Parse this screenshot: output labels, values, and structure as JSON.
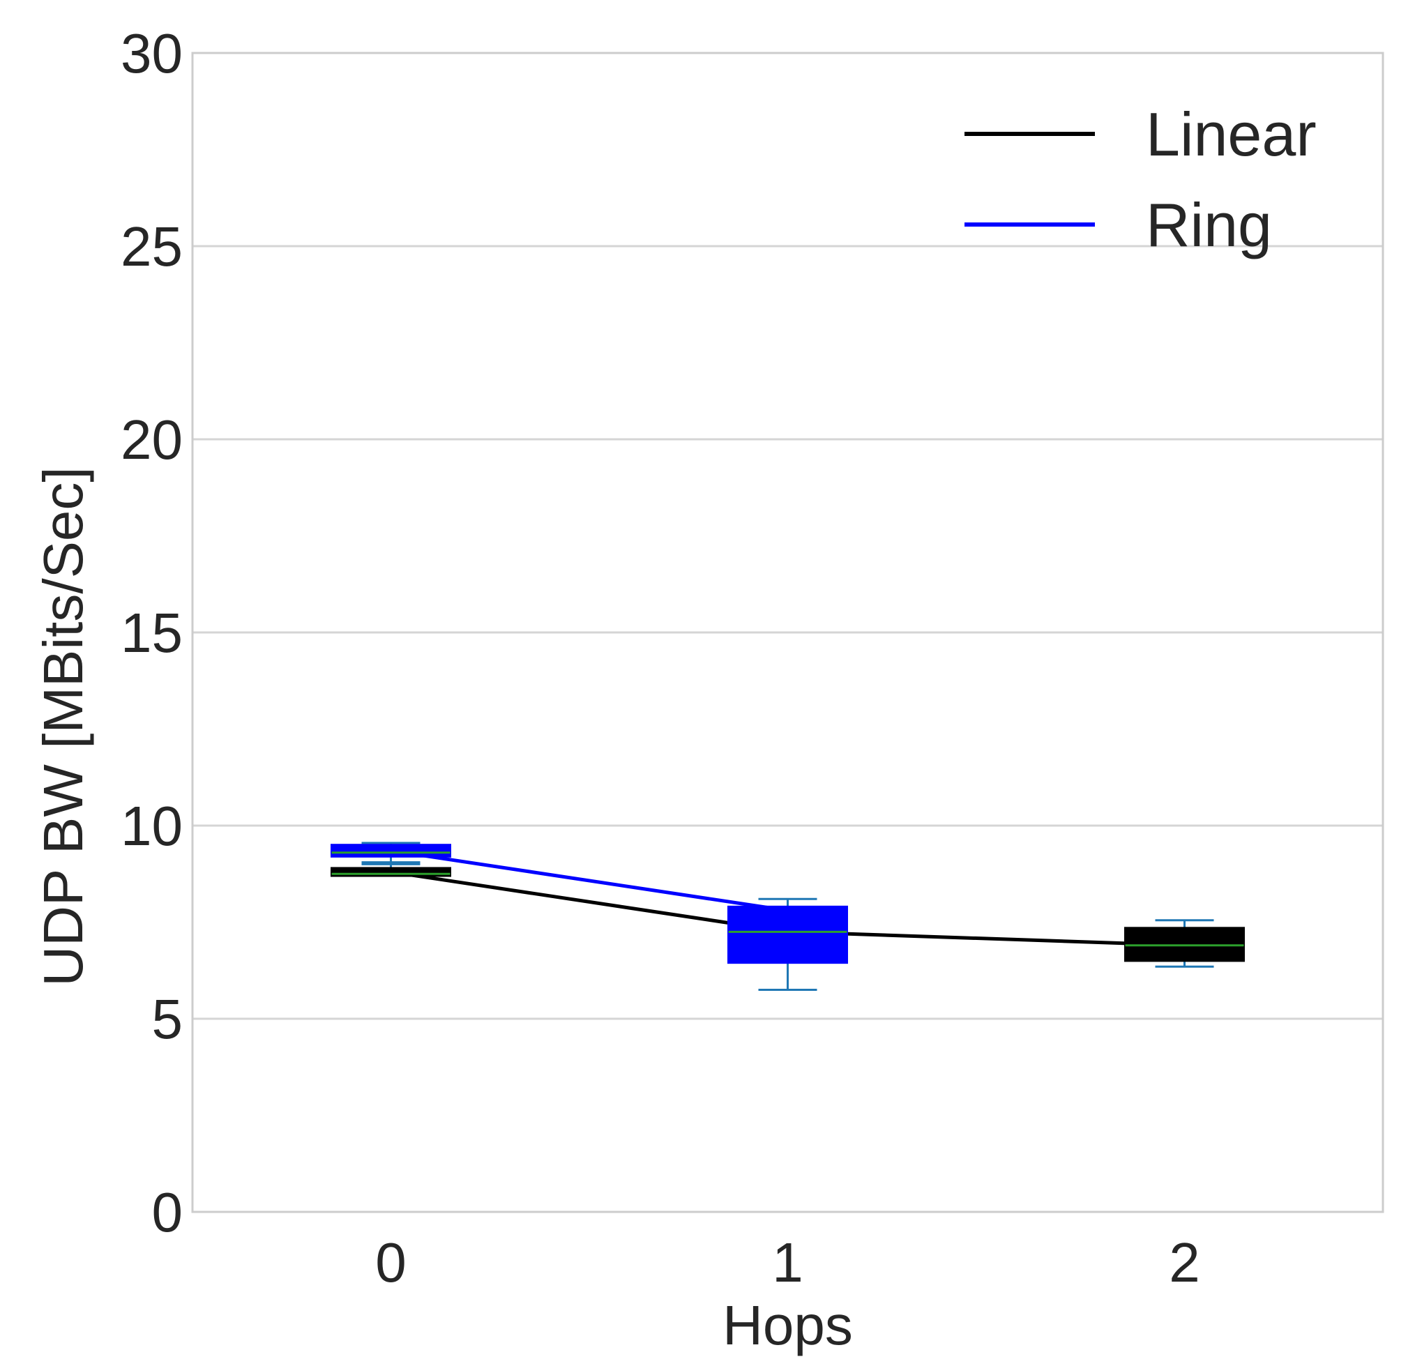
{
  "chart_data": {
    "type": "line",
    "xlabel": "Hops",
    "ylabel": "UDP BW  [MBits/Sec]",
    "x_ticks": [
      "0",
      "1",
      "2"
    ],
    "y_ticks": [
      "0",
      "5",
      "10",
      "15",
      "20",
      "25",
      "30"
    ],
    "xlim": [
      -0.5,
      2.5
    ],
    "ylim": [
      0,
      30
    ],
    "grid": true,
    "legend_position": "top-right",
    "series": [
      {
        "name": "Linear",
        "color": "#000000",
        "x": [
          0,
          1,
          2
        ],
        "y": [
          8.8,
          7.25,
          6.9
        ],
        "boxes": [
          {
            "x": 0,
            "q1": 8.7,
            "median": 8.75,
            "q3": 8.9,
            "whisker_low": 8.7,
            "whisker_high": 9.0
          },
          {
            "x": 2,
            "q1": 6.5,
            "median": 6.9,
            "q3": 7.35,
            "whisker_low": 6.35,
            "whisker_high": 7.55
          }
        ]
      },
      {
        "name": "Ring",
        "color": "#0000ff",
        "x": [
          0,
          1
        ],
        "y": [
          9.35,
          7.8
        ],
        "boxes": [
          {
            "x": 0,
            "q1": 9.2,
            "median": 9.3,
            "q3": 9.5,
            "whisker_low": 9.05,
            "whisker_high": 9.55
          },
          {
            "x": 1,
            "q1": 6.45,
            "median": 7.25,
            "q3": 7.9,
            "whisker_low": 5.75,
            "whisker_high": 8.1
          }
        ]
      }
    ],
    "style": {
      "median_color": "#2ca02c",
      "whisker_color": "#1f77b4",
      "grid_color": "#d5d5d5",
      "frame_color": "#cccccc"
    }
  }
}
